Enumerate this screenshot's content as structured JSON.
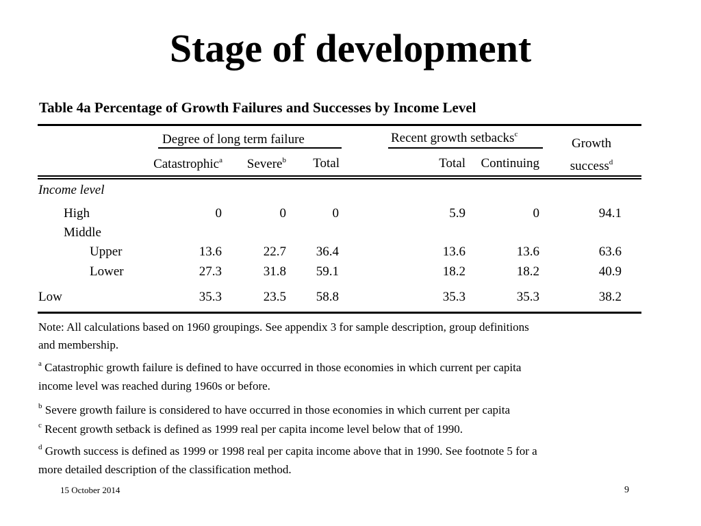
{
  "slide": {
    "title": "Stage of development",
    "date": "15 October 2014",
    "page_number": "9"
  },
  "table": {
    "caption": "Table 4a Percentage of Growth Failures and Successes by Income Level",
    "group_headers": {
      "long_term": "Degree of long term failure",
      "recent": "Recent growth setbacks",
      "recent_sup": "c",
      "growth_line1": "Growth",
      "growth_line2": "success",
      "growth_sup": "d"
    },
    "col_headers": {
      "catastrophic": "Catastrophic",
      "catastrophic_sup": "a",
      "severe": "Severe",
      "severe_sup": "b",
      "total": "Total",
      "recent_total": "Total",
      "continuing": "Continuing"
    },
    "section_label": "Income level",
    "rows": [
      {
        "label": "High",
        "values": [
          "0",
          "0",
          "0",
          "5.9",
          "0",
          "94.1"
        ]
      },
      {
        "label": "Middle",
        "values": []
      },
      {
        "label": "Upper",
        "values": [
          "13.6",
          "22.7",
          "36.4",
          "13.6",
          "13.6",
          "63.6"
        ]
      },
      {
        "label": "Lower",
        "values": [
          "27.3",
          "31.8",
          "59.1",
          "18.2",
          "18.2",
          "40.9"
        ]
      },
      {
        "label": "Low",
        "values": [
          "35.3",
          "23.5",
          "58.8",
          "35.3",
          "35.3",
          "38.2"
        ]
      }
    ]
  },
  "notes": {
    "note_line1": "Note: All calculations based on 1960 groupings. See appendix 3 for sample description, group definitions",
    "note_line2": "and membership.",
    "a_sup": "a",
    "a_line1": "Catastrophic growth failure is defined to have occurred in those economies in which current per capita",
    "a_line2": "income level was reached during 1960s or before.",
    "b_sup": "b",
    "b_line1": "Severe growth failure is considered to have occurred in those economies in which current per capita",
    "c_sup": "c",
    "c_line1": "Recent growth setback is defined as 1999 real per capita income level below that of 1990.",
    "d_sup": "d",
    "d_line1": "Growth success is defined as 1999 or 1998 real per capita income above that in 1990. See footnote 5 for a",
    "d_line2": "more detailed description of the classification method."
  }
}
